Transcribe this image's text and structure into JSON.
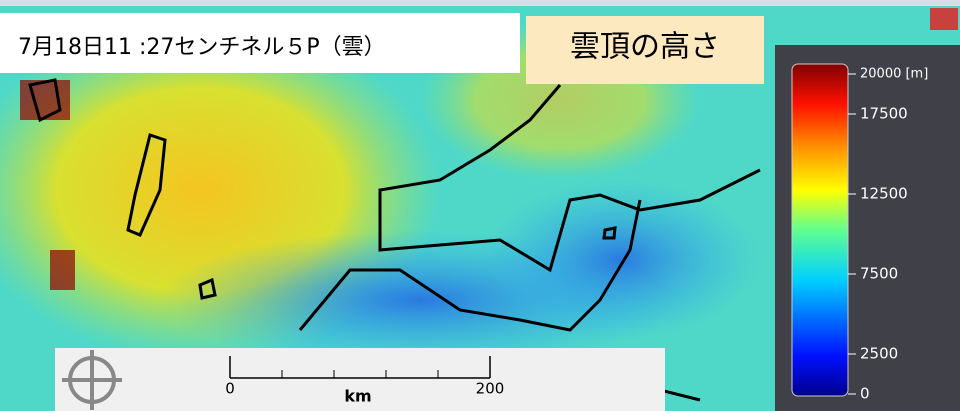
{
  "title": "7月18日11 :27センチネル５P（雲）",
  "subtitle": "雲頂の高さ",
  "colorbar": {
    "lim": [
      0,
      20000
    ],
    "ticks": [
      {
        "value": 20000,
        "label": "20000 [m]"
      },
      17500,
      12500,
      7500,
      2500,
      0
    ]
  },
  "scale_bar": {
    "lim": [
      0,
      200
    ],
    "ticks": [
      0,
      200
    ],
    "unit": "km"
  }
}
